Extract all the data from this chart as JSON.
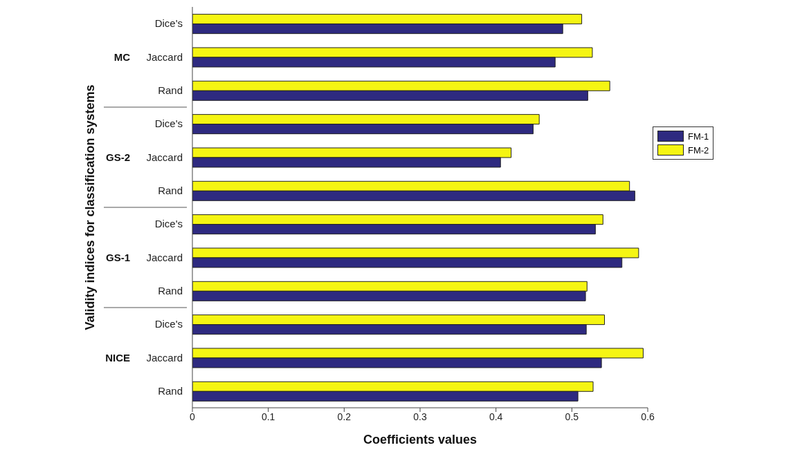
{
  "chart_data": {
    "type": "bar",
    "orientation": "horizontal",
    "xlabel": "Coefficients values",
    "ylabel": "Validity indices for classification systems",
    "categories": [
      "Dice's",
      "Jaccard",
      "Rand",
      "Dice's",
      "Jaccard",
      "Rand",
      "Dice's",
      "Jaccard",
      "Rand",
      "Dice's",
      "Jaccard",
      "Rand"
    ],
    "series": [
      {
        "name": "FM-1",
        "color": "#2e2a80",
        "values": [
          0.488,
          0.478,
          0.521,
          0.449,
          0.406,
          0.583,
          0.531,
          0.566,
          0.518,
          0.519,
          0.539,
          0.508
        ]
      },
      {
        "name": "FM-2",
        "color": "#f5f513",
        "values": [
          0.513,
          0.527,
          0.55,
          0.457,
          0.42,
          0.576,
          0.541,
          0.588,
          0.52,
          0.543,
          0.594,
          0.528
        ]
      }
    ],
    "annotations": [
      "MC",
      "GS-2",
      "GS-1",
      "NICE"
    ],
    "xlim": [
      0,
      0.6
    ],
    "xticks": [
      0,
      0.1,
      0.2,
      0.3,
      0.4,
      0.5,
      0.6
    ],
    "legend": "right",
    "grid": false
  }
}
